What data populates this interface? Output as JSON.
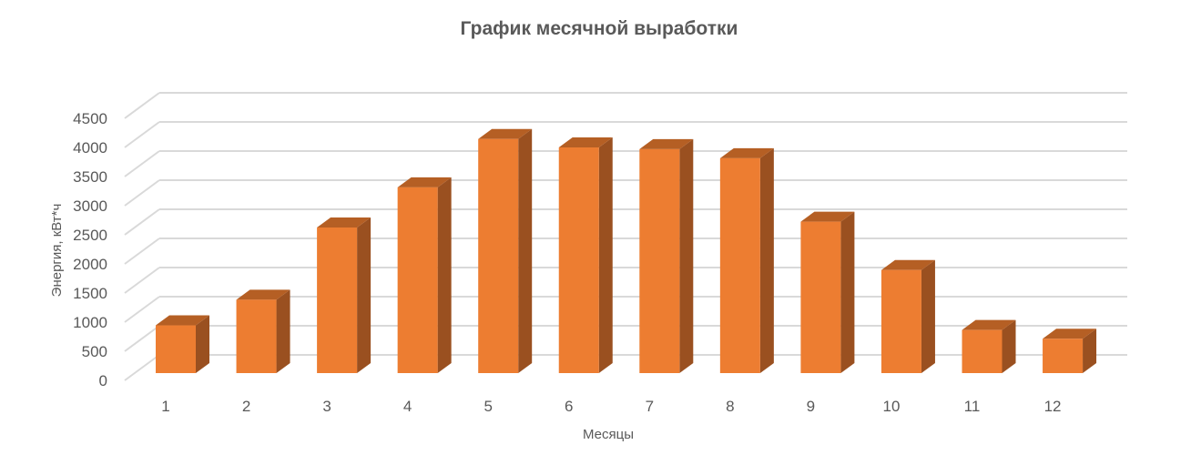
{
  "chart_data": {
    "type": "bar",
    "style": "3d-column",
    "title": "График месячной выработки",
    "xlabel": "Месяцы",
    "ylabel": "Энергия, кВт*ч",
    "categories": [
      "1",
      "2",
      "3",
      "4",
      "5",
      "6",
      "7",
      "8",
      "9",
      "10",
      "11",
      "12"
    ],
    "values": [
      820,
      1260,
      2500,
      3190,
      4020,
      3875,
      3845,
      3690,
      2600,
      1770,
      740,
      590
    ],
    "ylim": [
      0,
      4500
    ],
    "yticks": [
      "0",
      "500",
      "1000",
      "1500",
      "2000",
      "2500",
      "3000",
      "3500",
      "4000",
      "4500"
    ],
    "grid": true,
    "legend": "none",
    "colors": {
      "front": "#ed7d31",
      "top": "#b55f24",
      "side": "#9a5020",
      "grid": "#d9d9d9",
      "text": "#595959"
    }
  }
}
